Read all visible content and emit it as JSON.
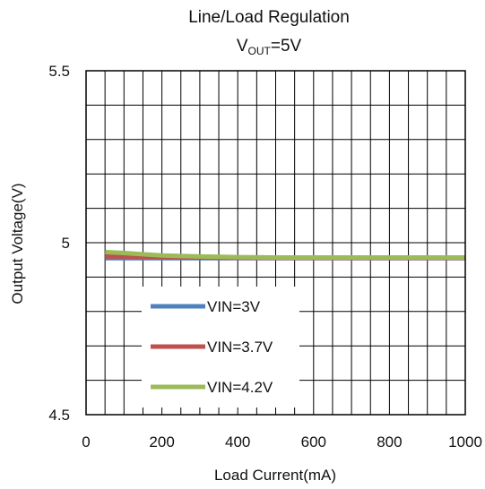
{
  "chart_data": {
    "type": "line",
    "title": "Line/Load Regulation",
    "subtitle": {
      "prefix": "V",
      "subscript": "OUT",
      "suffix": "=5V"
    },
    "xlabel": "Load Current(mA)",
    "ylabel": "Output Voltage(V)",
    "xlim": [
      0,
      1000
    ],
    "ylim": [
      4.5,
      5.5
    ],
    "x_ticks": [
      0,
      200,
      400,
      600,
      800,
      1000
    ],
    "x_tick_labels": [
      "0",
      "200",
      "400",
      "600",
      "800",
      "1000"
    ],
    "y_ticks": [
      4.5,
      5,
      5.5
    ],
    "y_tick_labels": [
      "4.5",
      "5",
      "5.5"
    ],
    "grid": true,
    "legend_position": "bottom-left",
    "series": [
      {
        "name": "VIN=3V",
        "color": "#4f81bd",
        "x": [
          50,
          100,
          200,
          300,
          400,
          500,
          600,
          700,
          800,
          900,
          1000
        ],
        "y": [
          4.955,
          4.955,
          4.955,
          4.955,
          4.955,
          4.955,
          4.955,
          4.955,
          4.955,
          4.955,
          4.955
        ]
      },
      {
        "name": "VIN=3.7V",
        "color": "#c0504d",
        "x": [
          50,
          100,
          200,
          300,
          400,
          500,
          600,
          700,
          800,
          900,
          1000
        ],
        "y": [
          4.96,
          4.96,
          4.958,
          4.957,
          4.956,
          4.956,
          4.956,
          4.956,
          4.956,
          4.956,
          4.956
        ]
      },
      {
        "name": "VIN=4.2V",
        "color": "#9bbb59",
        "x": [
          50,
          100,
          200,
          300,
          400,
          500,
          600,
          700,
          800,
          900,
          1000
        ],
        "y": [
          4.973,
          4.97,
          4.963,
          4.96,
          4.958,
          4.957,
          4.957,
          4.957,
          4.957,
          4.957,
          4.957
        ]
      }
    ]
  }
}
